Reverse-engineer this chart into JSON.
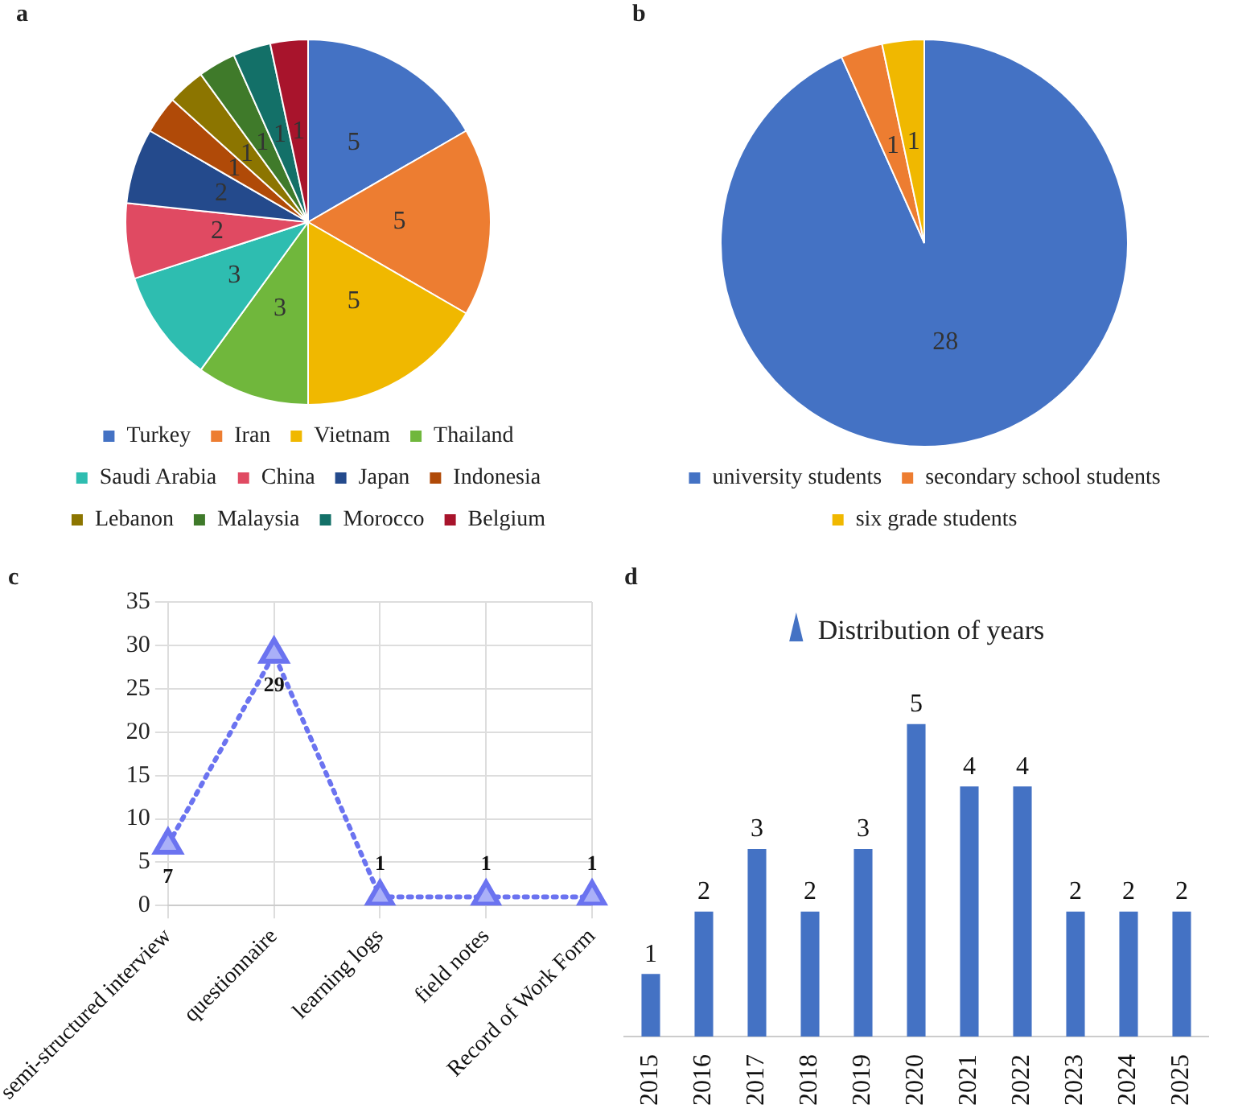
{
  "chart_data": [
    {
      "type": "pie",
      "title": "a",
      "categories": [
        "Turkey",
        "Iran",
        "Vietnam",
        "Thailand",
        "Saudi Arabia",
        "China",
        "Japan",
        "Indonesia",
        "Lebanon",
        "Malaysia",
        "Morocco",
        "Belgium"
      ],
      "values": [
        5,
        5,
        5,
        3,
        3,
        2,
        2,
        1,
        1,
        1,
        1,
        1
      ],
      "colors": [
        "#4472c4",
        "#ed7d31",
        "#f0b800",
        "#70b73c",
        "#2ebdb0",
        "#e04a62",
        "#244a8c",
        "#b04a08",
        "#8c7500",
        "#3f7a2a",
        "#137068",
        "#a8142c"
      ],
      "data_labels": true,
      "legend": "bottom"
    },
    {
      "type": "pie",
      "title": "b",
      "categories": [
        "university students",
        "secondary school students",
        "six grade students"
      ],
      "values": [
        28,
        1,
        1
      ],
      "colors": [
        "#4472c4",
        "#ed7d31",
        "#f0b800"
      ],
      "data_labels": true,
      "legend": "bottom"
    },
    {
      "type": "line",
      "title": "c",
      "categories": [
        "semi-structured interview",
        "questionnaire",
        "learning logs",
        "field notes",
        "Record of Work Form"
      ],
      "series": [
        {
          "color": "#6b73f0",
          "values": [
            7,
            29,
            1,
            1,
            1
          ]
        }
      ],
      "ylim": [
        0,
        35
      ],
      "yticks": [
        0,
        5,
        10,
        15,
        20,
        25,
        30,
        35
      ],
      "grid": true,
      "marker": "triangle",
      "line_style": "dotted",
      "data_labels": true
    },
    {
      "type": "bar",
      "title": "d",
      "categories": [
        "2015",
        "2016",
        "2017",
        "2018",
        "2019",
        "2020",
        "2021",
        "2022",
        "2023",
        "2024",
        "2025"
      ],
      "series": [
        {
          "name": "Distribution of years",
          "color": "#4472c4",
          "values": [
            1,
            2,
            3,
            2,
            3,
            5,
            4,
            4,
            2,
            2,
            2
          ]
        }
      ],
      "data_labels": true,
      "legend": "top"
    }
  ]
}
